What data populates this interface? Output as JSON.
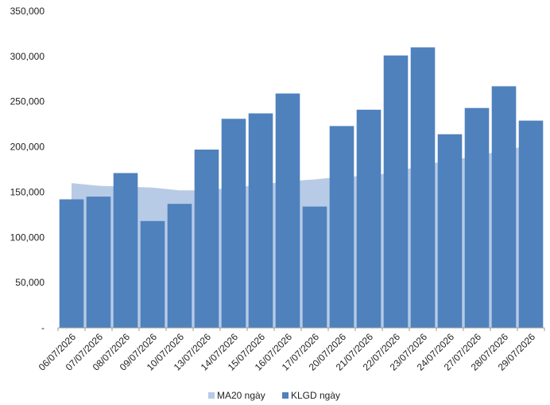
{
  "chart_data": {
    "type": "bar",
    "categories": [
      "06/07/2026",
      "07/07/2026",
      "08/07/2026",
      "09/07/2026",
      "10/07/2026",
      "13/07/2026",
      "14/07/2026",
      "15/07/2026",
      "16/07/2026",
      "17/07/2026",
      "20/07/2026",
      "21/07/2026",
      "22/07/2026",
      "23/07/2026",
      "24/07/2026",
      "27/07/2026",
      "28/07/2026",
      "29/07/2026"
    ],
    "series": [
      {
        "name": "MA20 ngày",
        "kind": "area",
        "color": "#b7cbe6",
        "values": [
          160000,
          157000,
          156000,
          155000,
          152000,
          152000,
          155000,
          158000,
          162000,
          164000,
          167000,
          168000,
          172000,
          180000,
          185000,
          190000,
          196000,
          202000
        ]
      },
      {
        "name": "KLGD ngày",
        "kind": "bar",
        "color": "#4f81bd",
        "values": [
          142000,
          145000,
          171000,
          118000,
          137000,
          197000,
          231000,
          237000,
          259000,
          134000,
          223000,
          241000,
          301000,
          310000,
          214000,
          243000,
          267000,
          229000
        ]
      }
    ],
    "ylim": [
      0,
      350000
    ],
    "yticks": [
      "-",
      "50,000",
      "100,000",
      "150,000",
      "200,000",
      "250,000",
      "300,000",
      "350,000"
    ],
    "ytick_values": [
      0,
      50000,
      100000,
      150000,
      200000,
      250000,
      300000,
      350000
    ],
    "grid": false,
    "legend_position": "bottom",
    "title": "",
    "xlabel": "",
    "ylabel": ""
  }
}
